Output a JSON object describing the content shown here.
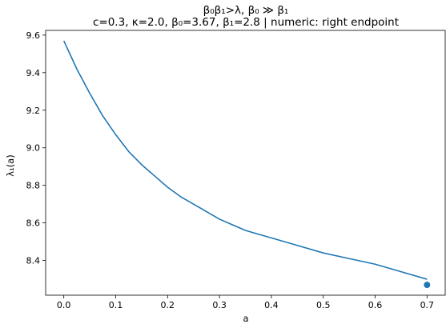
{
  "chart_data": {
    "type": "line",
    "title": "β₀β₁>λ, β₀ ≫ β₁",
    "subtitle": "c=0.3, κ=2.0, β₀=3.67, β₁=2.8   |   numeric: right endpoint",
    "xlabel": "a",
    "ylabel": "λ₁(a)",
    "xlim": [
      -0.035,
      0.735
    ],
    "ylim": [
      8.215,
      9.625
    ],
    "x_ticks": [
      0.0,
      0.1,
      0.2,
      0.3,
      0.4,
      0.5,
      0.6,
      0.7
    ],
    "x_tick_labels": [
      "0.0",
      "0.1",
      "0.2",
      "0.3",
      "0.4",
      "0.5",
      "0.6",
      "0.7"
    ],
    "y_ticks": [
      8.4,
      8.6,
      8.8,
      9.0,
      9.2,
      9.4,
      9.6
    ],
    "y_tick_labels": [
      "8.4",
      "8.6",
      "8.8",
      "9.0",
      "9.2",
      "9.4",
      "9.6"
    ],
    "grid": false,
    "series": [
      {
        "color": "#1f77b4",
        "x": [
          0.0,
          0.025,
          0.05,
          0.075,
          0.1,
          0.125,
          0.15,
          0.175,
          0.2,
          0.225,
          0.25,
          0.275,
          0.3,
          0.325,
          0.35,
          0.375,
          0.4,
          0.45,
          0.5,
          0.55,
          0.6,
          0.65,
          0.7
        ],
        "y": [
          9.57,
          9.42,
          9.29,
          9.17,
          9.07,
          8.98,
          8.91,
          8.85,
          8.79,
          8.74,
          8.7,
          8.66,
          8.62,
          8.59,
          8.56,
          8.54,
          8.52,
          8.48,
          8.44,
          8.41,
          8.38,
          8.34,
          8.3
        ]
      }
    ],
    "endpoint": {
      "x": 0.7,
      "y": 8.27,
      "color": "#1f77b4"
    }
  }
}
